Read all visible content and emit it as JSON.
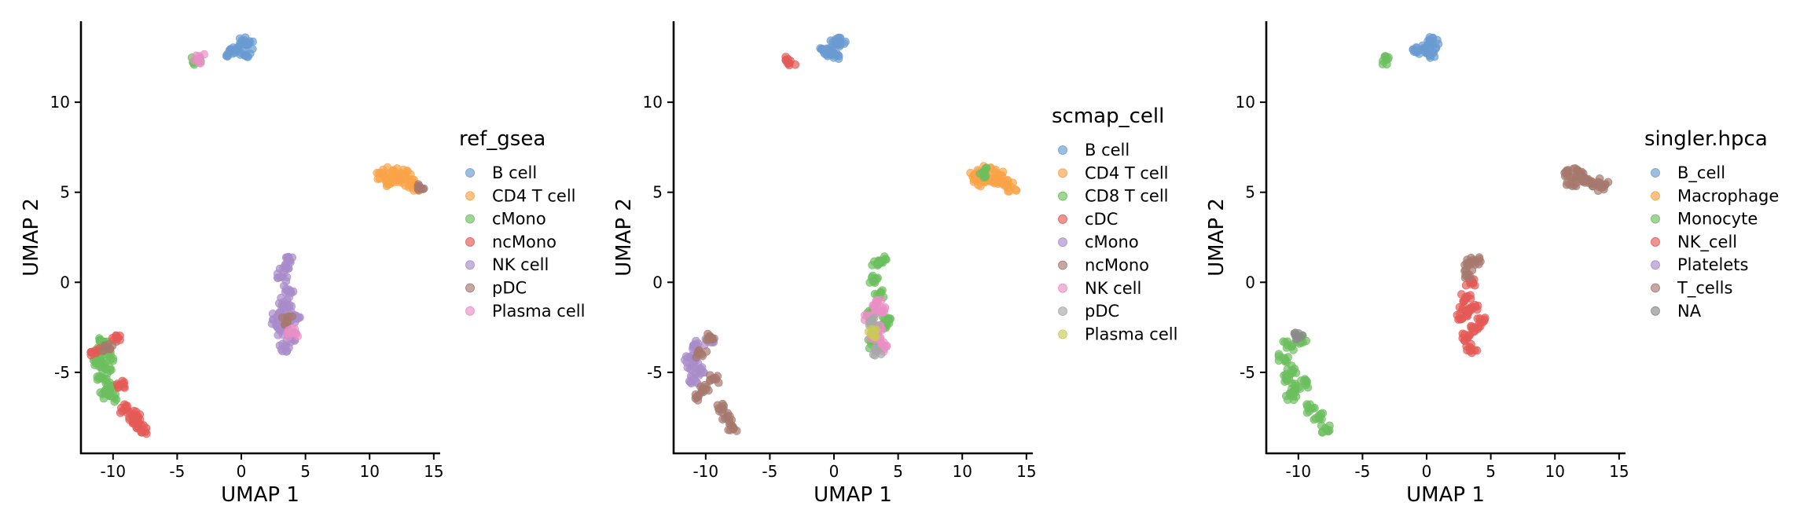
{
  "chart_data": [
    {
      "type": "scatter",
      "xlabel": "UMAP 1",
      "ylabel": "UMAP 2",
      "xlim": [
        -12.5,
        15.5
      ],
      "ylim": [
        -9.5,
        14.5
      ],
      "xticks": [
        -10,
        -5,
        0,
        5,
        10,
        15
      ],
      "xtick_labels": [
        "-10",
        "-5",
        "0",
        "5",
        "10",
        "15"
      ],
      "yticks": [
        -5,
        0,
        5,
        10
      ],
      "ytick_labels": [
        "-5",
        "0",
        "5",
        "10"
      ],
      "legend_title": "ref_gsea",
      "legend_placement": "right",
      "categories": [
        "B cell",
        "CD4 T cell",
        "cMono",
        "ncMono",
        "NK cell",
        "pDC",
        "Plasma cell"
      ],
      "colors": [
        "#6a9bd1",
        "#f9a347",
        "#6cbf5e",
        "#e45a56",
        "#a98ccb",
        "#a6796e",
        "#e98fc6"
      ],
      "clusters": [
        {
          "category": "B cell",
          "points": [
            [
              -0.3,
              12.9
            ],
            [
              0.5,
              13.2
            ],
            [
              -0.8,
              12.8
            ],
            [
              0.3,
              12.6
            ],
            [
              0.1,
              13.4
            ]
          ]
        },
        {
          "category": "CD4 T cell",
          "points": [
            [
              11.0,
              6.0
            ],
            [
              11.8,
              6.2
            ],
            [
              12.5,
              5.7
            ],
            [
              13.2,
              5.5
            ],
            [
              13.8,
              5.3
            ],
            [
              12.0,
              5.8
            ],
            [
              11.3,
              5.6
            ],
            [
              12.8,
              6.0
            ]
          ]
        },
        {
          "category": "cMono",
          "points": [
            [
              -3.5,
              12.3
            ],
            [
              -10.8,
              -3.5
            ],
            [
              -11.2,
              -4.2
            ],
            [
              -10.5,
              -4.8
            ],
            [
              -10.9,
              -5.3
            ],
            [
              -10.2,
              -5.8
            ],
            [
              -10.6,
              -6.2
            ],
            [
              -11.0,
              -4.6
            ],
            [
              -10.3,
              -4.1
            ],
            [
              -9.9,
              -6.4
            ],
            [
              -10.7,
              -3.3
            ]
          ]
        },
        {
          "category": "ncMono",
          "points": [
            [
              -9.7,
              -3.1
            ],
            [
              -11.3,
              -3.9
            ],
            [
              -9.5,
              -5.7
            ],
            [
              -9.0,
              -7.0
            ],
            [
              -8.5,
              -7.4
            ],
            [
              -8.0,
              -7.8
            ],
            [
              -7.8,
              -8.2
            ],
            [
              -8.3,
              -7.6
            ]
          ]
        },
        {
          "category": "NK cell",
          "points": [
            [
              3.4,
              0.9
            ],
            [
              3.8,
              1.2
            ],
            [
              3.2,
              0.3
            ],
            [
              3.7,
              -0.4
            ],
            [
              3.3,
              -1.1
            ],
            [
              2.8,
              -1.9
            ],
            [
              3.6,
              -2.2
            ],
            [
              3.1,
              -2.7
            ],
            [
              3.9,
              -3.1
            ],
            [
              3.4,
              -3.6
            ],
            [
              2.7,
              -2.4
            ],
            [
              4.2,
              -2.0
            ],
            [
              3.5,
              -1.5
            ]
          ]
        },
        {
          "category": "pDC",
          "points": [
            [
              14.0,
              5.2
            ],
            [
              3.6,
              -2.1
            ],
            [
              -10.4,
              -3.6
            ]
          ]
        },
        {
          "category": "Plasma cell",
          "points": [
            [
              -3.3,
              12.4
            ],
            [
              4.0,
              -2.8
            ]
          ]
        }
      ]
    },
    {
      "type": "scatter",
      "xlabel": "UMAP 1",
      "ylabel": "UMAP 2",
      "xlim": [
        -12.5,
        15.5
      ],
      "ylim": [
        -9.5,
        14.5
      ],
      "xticks": [
        -10,
        -5,
        0,
        5,
        10,
        15
      ],
      "xtick_labels": [
        "-10",
        "-5",
        "0",
        "5",
        "10",
        "15"
      ],
      "yticks": [
        -5,
        0,
        5,
        10
      ],
      "ytick_labels": [
        "-5",
        "0",
        "5",
        "10"
      ],
      "legend_title": "scmap_cell",
      "legend_placement": "right",
      "categories": [
        "B cell",
        "CD4 T cell",
        "CD8 T cell",
        "cDC",
        "cMono",
        "ncMono",
        "NK cell",
        "pDC",
        "Plasma cell"
      ],
      "colors": [
        "#6a9bd1",
        "#f9a347",
        "#6cbf5e",
        "#e45a56",
        "#a98ccb",
        "#a6796e",
        "#e98fc6",
        "#a8a8a8",
        "#c9c95a"
      ],
      "clusters": [
        {
          "category": "B cell",
          "points": [
            [
              -0.3,
              12.9
            ],
            [
              0.5,
              13.2
            ],
            [
              -0.8,
              12.8
            ],
            [
              0.3,
              12.6
            ],
            [
              0.1,
              13.4
            ]
          ]
        },
        {
          "category": "CD4 T cell",
          "points": [
            [
              11.0,
              6.0
            ],
            [
              11.8,
              6.2
            ],
            [
              12.5,
              5.7
            ],
            [
              13.2,
              5.5
            ],
            [
              13.8,
              5.3
            ],
            [
              12.0,
              5.8
            ],
            [
              11.3,
              5.6
            ],
            [
              12.8,
              6.0
            ]
          ]
        },
        {
          "category": "CD8 T cell",
          "points": [
            [
              11.6,
              6.1
            ],
            [
              3.4,
              1.0
            ],
            [
              3.8,
              1.2
            ],
            [
              3.2,
              0.2
            ],
            [
              3.6,
              -0.6
            ],
            [
              2.9,
              -1.7
            ],
            [
              3.9,
              -2.3
            ],
            [
              3.1,
              -3.4
            ],
            [
              4.2,
              -2.1
            ]
          ]
        },
        {
          "category": "cDC",
          "points": [
            [
              -3.4,
              12.3
            ]
          ]
        },
        {
          "category": "cMono",
          "points": [
            [
              -10.8,
              -3.5
            ],
            [
              -11.2,
              -4.2
            ],
            [
              -10.5,
              -4.9
            ],
            [
              -10.9,
              -5.4
            ],
            [
              -11.0,
              -4.6
            ],
            [
              -9.8,
              -3.3
            ]
          ]
        },
        {
          "category": "ncMono",
          "points": [
            [
              -10.2,
              -5.9
            ],
            [
              -10.6,
              -6.3
            ],
            [
              -9.4,
              -5.4
            ],
            [
              -9.0,
              -7.0
            ],
            [
              -8.4,
              -7.5
            ],
            [
              -7.9,
              -8.1
            ],
            [
              -9.7,
              -3.0
            ],
            [
              -10.3,
              -4.0
            ]
          ]
        },
        {
          "category": "NK cell",
          "points": [
            [
              3.3,
              -1.1
            ],
            [
              3.5,
              -2.5
            ],
            [
              3.2,
              -3.0
            ],
            [
              3.7,
              -3.6
            ],
            [
              2.8,
              -2.0
            ],
            [
              3.6,
              -1.6
            ]
          ]
        },
        {
          "category": "pDC",
          "points": [
            [
              3.0,
              -2.2
            ],
            [
              3.4,
              -3.8
            ]
          ]
        },
        {
          "category": "Plasma cell",
          "points": [
            [
              2.9,
              -2.8
            ]
          ]
        }
      ]
    },
    {
      "type": "scatter",
      "xlabel": "UMAP 1",
      "ylabel": "UMAP 2",
      "xlim": [
        -12.5,
        15.5
      ],
      "ylim": [
        -9.5,
        14.5
      ],
      "xticks": [
        -10,
        -5,
        0,
        5,
        10,
        15
      ],
      "xtick_labels": [
        "-10",
        "-5",
        "0",
        "5",
        "10",
        "15"
      ],
      "yticks": [
        -5,
        0,
        5,
        10
      ],
      "ytick_labels": [
        "-5",
        "0",
        "5",
        "10"
      ],
      "legend_title": "singler.hpca",
      "legend_placement": "right",
      "categories": [
        "B_cell",
        "Macrophage",
        "Monocyte",
        "NK_cell",
        "Platelets",
        "T_cells",
        "NA"
      ],
      "colors": [
        "#6a9bd1",
        "#f9a347",
        "#6cbf5e",
        "#e45a56",
        "#a98ccb",
        "#a6796e",
        "#8a8a8a"
      ],
      "clusters": [
        {
          "category": "B_cell",
          "points": [
            [
              -0.3,
              12.9
            ],
            [
              0.5,
              13.2
            ],
            [
              -0.8,
              12.8
            ],
            [
              0.3,
              12.6
            ],
            [
              0.1,
              13.4
            ]
          ]
        },
        {
          "category": "Monocyte",
          "points": [
            [
              -3.4,
              12.3
            ],
            [
              -10.8,
              -3.5
            ],
            [
              -11.2,
              -4.2
            ],
            [
              -10.5,
              -4.9
            ],
            [
              -10.9,
              -5.4
            ],
            [
              -10.2,
              -5.9
            ],
            [
              -10.6,
              -6.3
            ],
            [
              -9.4,
              -5.6
            ],
            [
              -9.0,
              -7.0
            ],
            [
              -8.4,
              -7.5
            ],
            [
              -7.9,
              -8.1
            ],
            [
              -9.8,
              -3.2
            ]
          ]
        },
        {
          "category": "NK_cell",
          "points": [
            [
              3.4,
              0.0
            ],
            [
              3.1,
              -0.9
            ],
            [
              3.6,
              -1.4
            ],
            [
              2.8,
              -2.0
            ],
            [
              3.7,
              -2.5
            ],
            [
              3.2,
              -3.1
            ],
            [
              3.5,
              -3.7
            ],
            [
              4.2,
              -2.2
            ],
            [
              3.0,
              -1.6
            ]
          ]
        },
        {
          "category": "T_cells",
          "points": [
            [
              3.4,
              1.0
            ],
            [
              3.8,
              1.2
            ],
            [
              3.2,
              0.5
            ],
            [
              11.0,
              6.0
            ],
            [
              11.8,
              6.2
            ],
            [
              12.5,
              5.7
            ],
            [
              13.2,
              5.5
            ],
            [
              13.8,
              5.3
            ],
            [
              12.0,
              5.8
            ],
            [
              11.3,
              5.6
            ]
          ]
        },
        {
          "category": "NA",
          "points": [
            [
              -10.0,
              -3.0
            ]
          ]
        }
      ]
    }
  ]
}
